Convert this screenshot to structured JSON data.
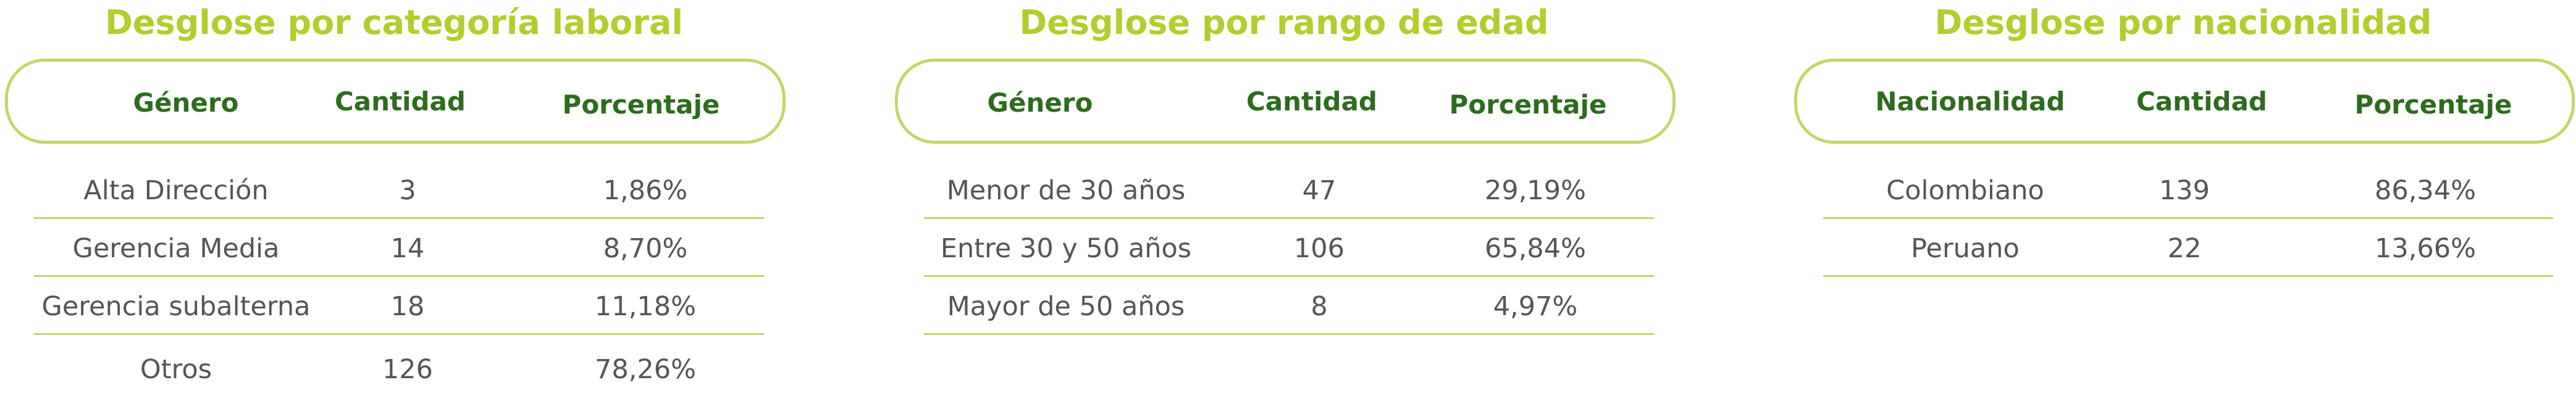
{
  "tables": [
    {
      "title": "Desglose por categoría laboral",
      "headers": [
        "Género",
        "Cantidad",
        "Porcentaje"
      ],
      "rows": [
        [
          "Alta Dirección",
          "3",
          "1,86%"
        ],
        [
          "Gerencia Media",
          "14",
          "8,70%"
        ],
        [
          "Gerencia subalterna",
          "18",
          "11,18%"
        ],
        [
          "Otros",
          "126",
          "78,26%"
        ]
      ]
    },
    {
      "title": "Desglose por rango de edad",
      "headers": [
        "Género",
        "Cantidad",
        "Porcentaje"
      ],
      "rows": [
        [
          "Menor de 30 años",
          "47",
          "29,19%"
        ],
        [
          "Entre 30 y 50 años",
          "106",
          "65,84%"
        ],
        [
          "Mayor de 50 años",
          "8",
          "4,97%"
        ]
      ]
    },
    {
      "title": "Desglose por nacionalidad",
      "headers": [
        "Nacionalidad",
        "Cantidad",
        "Porcentaje"
      ],
      "rows": [
        [
          "Colombiano",
          "139",
          "86,34%"
        ],
        [
          "Peruano",
          "22",
          "13,66%"
        ]
      ]
    }
  ],
  "colors": {
    "title": "#b5cc2e",
    "header_text": "#2e6b1e",
    "border": "#c3d76a",
    "body_text": "#555555"
  }
}
